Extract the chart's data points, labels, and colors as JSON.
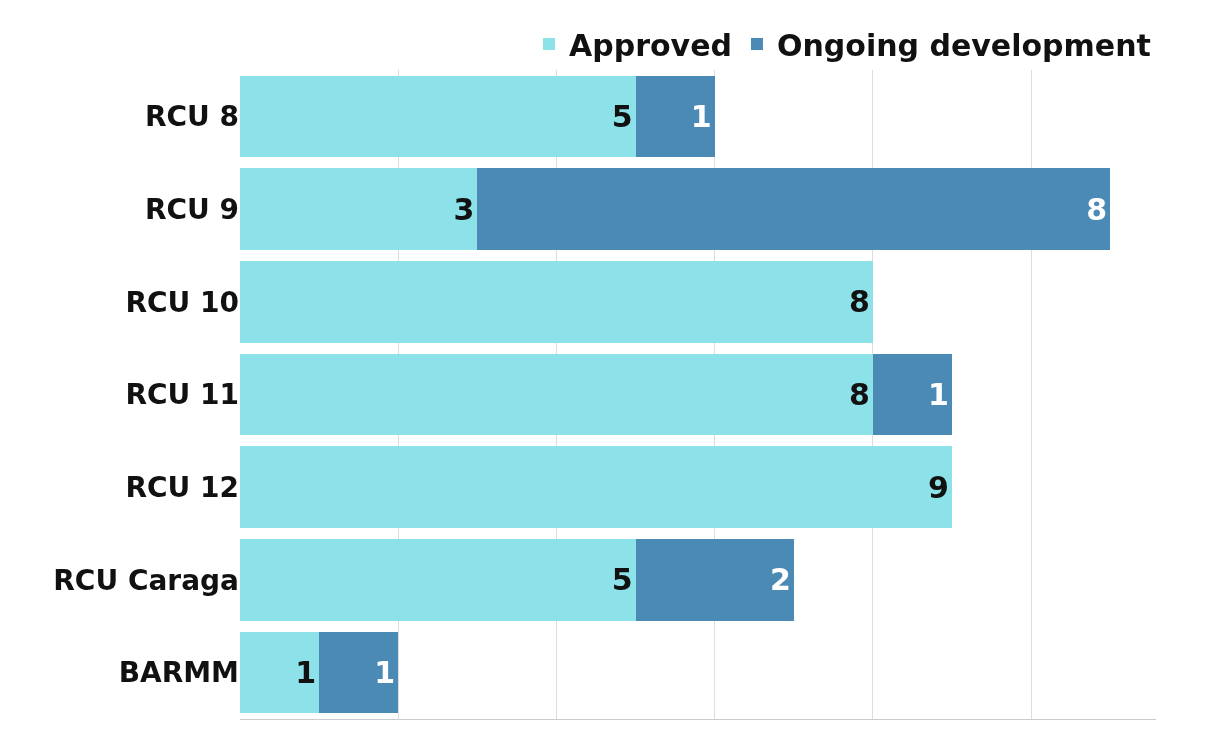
{
  "chart_data": {
    "type": "bar",
    "orientation": "horizontal",
    "stacked": true,
    "data_labels": true,
    "grid": "x",
    "legend": "top",
    "tick_labels": "y",
    "categories": [
      "RCU 8",
      "RCU 9",
      "RCU 10",
      "RCU 11",
      "RCU 12",
      "RCU Caraga",
      "BARMM"
    ],
    "series": [
      {
        "name": "Approved",
        "color": "#8de1e8",
        "values": [
          5,
          3,
          8,
          8,
          9,
          5,
          1
        ]
      },
      {
        "name": "Ongoing development",
        "color": "#4a8ab5",
        "values": [
          1,
          8,
          null,
          1,
          null,
          2,
          1
        ]
      }
    ]
  }
}
